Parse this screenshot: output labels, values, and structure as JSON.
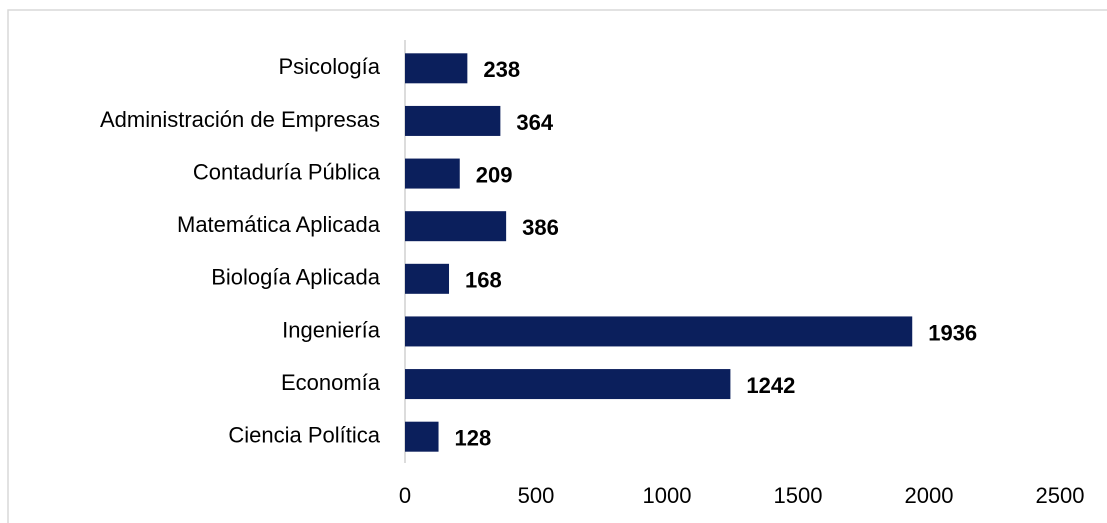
{
  "chart_data": {
    "type": "bar",
    "orientation": "horizontal",
    "categories": [
      "Psicología",
      "Administración de Empresas",
      "Contaduría Pública",
      "Matemática Aplicada",
      "Biología Aplicada",
      "Ingeniería",
      "Economía",
      "Ciencia Política"
    ],
    "values": [
      238,
      364,
      209,
      386,
      168,
      1936,
      1242,
      128
    ],
    "color": "#0b1f5c",
    "xlim": [
      0,
      2500
    ],
    "xticks": [
      0,
      500,
      1000,
      1500,
      2000,
      2500
    ],
    "grid": false
  }
}
